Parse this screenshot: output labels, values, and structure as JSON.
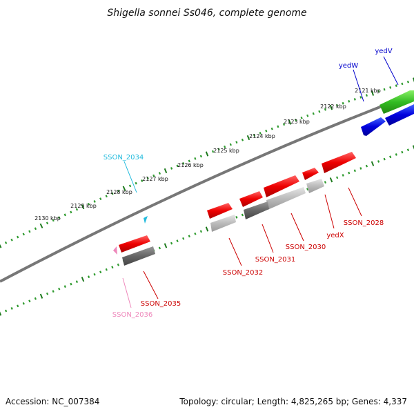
{
  "title": "Shigella sonnei Ss046, complete genome",
  "footer": {
    "accession": "Accession: NC_007384",
    "summary": "Topology: circular; Length: 4,825,265 bp; Genes: 4,337"
  },
  "ticks": [
    "2121 kbp",
    "2122 kbp",
    "2123 kbp",
    "2124 kbp",
    "2125 kbp",
    "2126 kbp",
    "2127 kbp",
    "2128 kbp",
    "2129 kbp",
    "2130 kbp"
  ],
  "genes": [
    {
      "name": "yedV",
      "color": "#0000cc"
    },
    {
      "name": "yedW",
      "color": "#0000cc"
    },
    {
      "name": "SSON_2034",
      "color": "#22bbdd"
    },
    {
      "name": "SSON_2028",
      "color": "#cc0000"
    },
    {
      "name": "yedX",
      "color": "#cc0000"
    },
    {
      "name": "SSON_2030",
      "color": "#cc0000"
    },
    {
      "name": "SSON_2031",
      "color": "#cc0000"
    },
    {
      "name": "SSON_2032",
      "color": "#cc0000"
    },
    {
      "name": "SSON_2035",
      "color": "#cc0000"
    },
    {
      "name": "SSON_2036",
      "color": "#ee88bb"
    }
  ]
}
